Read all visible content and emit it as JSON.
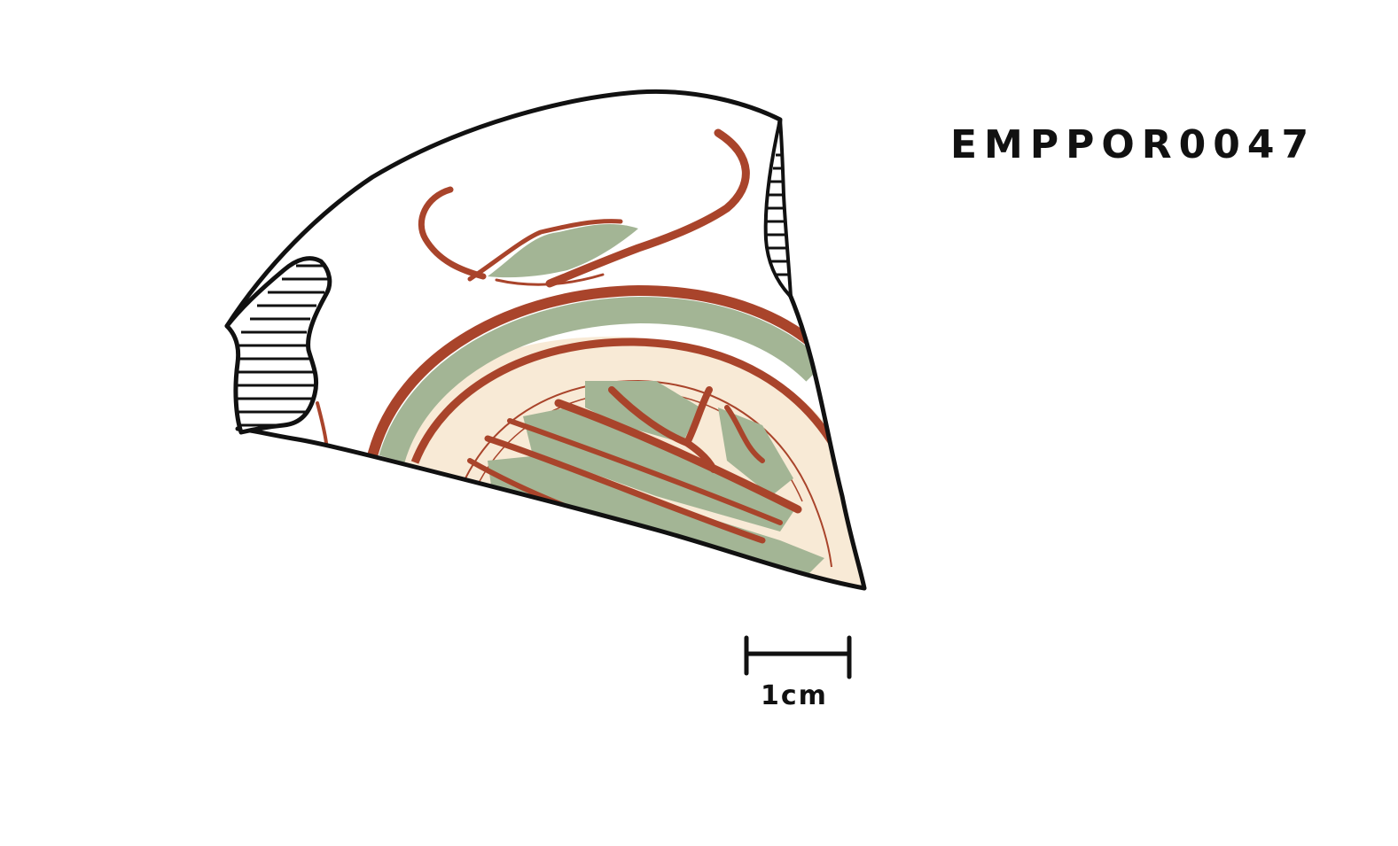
{
  "catalog_id": "EMPPOR0047",
  "scale_bar": {
    "label": "1cm"
  },
  "colors": {
    "outline": "#111111",
    "slip_red": "#a9442b",
    "glaze_green": "#a3b595",
    "cream": "#f8ead6",
    "background": "#ffffff"
  }
}
